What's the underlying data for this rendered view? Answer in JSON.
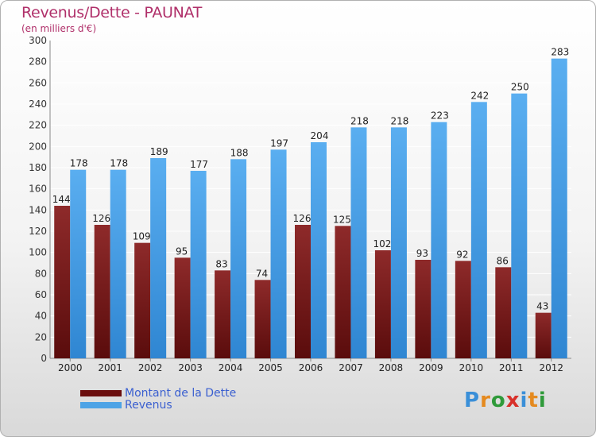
{
  "title": "Revenus/Dette - PAUNAT",
  "subtitle": "(en milliers d'€)",
  "colors": {
    "dette": "#7a1a1a",
    "revenus": "#4da3e6",
    "title": "#b0306a",
    "legend_text": "#3a5fd0"
  },
  "legend": [
    {
      "label": "Montant de la Dette",
      "color": "#6b0f0f"
    },
    {
      "label": "Revenus",
      "color": "#4da3e6"
    }
  ],
  "logo": {
    "letters": [
      "P",
      "r",
      "o",
      "x",
      "i",
      "t",
      "i"
    ],
    "colors": [
      "#3a8fd8",
      "#e58a1f",
      "#2f9a3a",
      "#d8302a",
      "#3a8fd8",
      "#e58a1f",
      "#2f9a3a"
    ]
  },
  "chart_data": {
    "type": "bar",
    "title": "Revenus/Dette - PAUNAT",
    "subtitle": "(en milliers d'€)",
    "categories": [
      "2000",
      "2001",
      "2002",
      "2003",
      "2004",
      "2005",
      "2006",
      "2007",
      "2008",
      "2009",
      "2010",
      "2011",
      "2012"
    ],
    "series": [
      {
        "name": "Montant de la Dette",
        "values": [
          144,
          126,
          109,
          95,
          83,
          74,
          126,
          125,
          102,
          93,
          92,
          86,
          43
        ]
      },
      {
        "name": "Revenus",
        "values": [
          178,
          178,
          189,
          177,
          188,
          197,
          204,
          218,
          218,
          223,
          242,
          250,
          283
        ]
      }
    ],
    "ylim": [
      0,
      300
    ],
    "yticks": [
      0,
      20,
      40,
      60,
      80,
      100,
      120,
      140,
      160,
      180,
      200,
      220,
      240,
      260,
      280,
      300
    ],
    "grid": true,
    "legend_position": "bottom-left"
  }
}
